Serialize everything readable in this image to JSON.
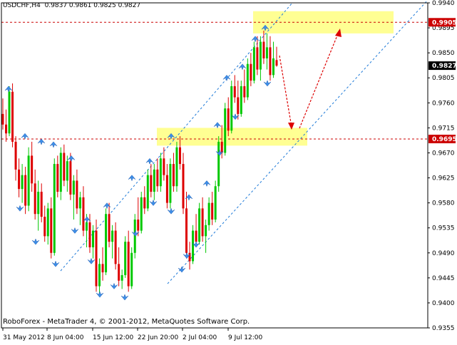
{
  "header": {
    "symbol": "USDCHF,H4",
    "ohlc": "0.9837 0.9861 0.9825 0.9827"
  },
  "copyright": "RoboForex - MetaTrader 4, © 2001-2012, MetaQuotes Software Corp.",
  "chart_data": {
    "type": "candlestick",
    "ylim": [
      0.9355,
      0.994
    ],
    "y_ticks": [
      "0.9940",
      "0.9895",
      "0.9850",
      "0.9805",
      "0.9760",
      "0.9715",
      "0.9670",
      "0.9625",
      "0.9580",
      "0.9535",
      "0.9490",
      "0.9445",
      "0.9400",
      "0.9355"
    ],
    "x_ticks": [
      "31 May 2012",
      "8 Jun 04:00",
      "15 Jun 12:00",
      "22 Jun 20:00",
      "2 Jul 04:00",
      "9 Jul 12:00"
    ],
    "levels": [
      {
        "value": 0.9905,
        "label": "0.9905",
        "color": "#cc0000"
      },
      {
        "value": 0.9695,
        "label": "0.9695",
        "color": "#cc0000"
      }
    ],
    "current_price": {
      "value": 0.9827,
      "label": "0.9827"
    },
    "zones": [
      {
        "y_top": 0.9925,
        "y_bottom": 0.9885
      },
      {
        "y_top": 0.9715,
        "y_bottom": 0.9683
      }
    ],
    "colors": {
      "bull_candle": "#00c800",
      "bear_candle": "#dd0000",
      "channel": "#1e7ad8",
      "fractal": "#3d8ee8",
      "zone": "#ffff80",
      "forecast_arrow": "#dd0000",
      "level": "#cc0000"
    },
    "candles": [
      [
        0.974,
        0.9768,
        0.9712,
        0.9721
      ],
      [
        0.9721,
        0.9748,
        0.969,
        0.9705
      ],
      [
        0.9705,
        0.979,
        0.97,
        0.978
      ],
      [
        0.978,
        0.9795,
        0.968,
        0.969
      ],
      [
        0.969,
        0.97,
        0.962,
        0.964
      ],
      [
        0.964,
        0.966,
        0.959,
        0.9605
      ],
      [
        0.9605,
        0.965,
        0.958,
        0.963
      ],
      [
        0.963,
        0.9645,
        0.956,
        0.9575
      ],
      [
        0.9575,
        0.968,
        0.9565,
        0.9665
      ],
      [
        0.9665,
        0.969,
        0.96,
        0.9615
      ],
      [
        0.9615,
        0.964,
        0.955,
        0.956
      ],
      [
        0.956,
        0.962,
        0.953,
        0.96
      ],
      [
        0.96,
        0.9615,
        0.9545,
        0.9555
      ],
      [
        0.9555,
        0.9575,
        0.951,
        0.952
      ],
      [
        0.952,
        0.958,
        0.9505,
        0.957
      ],
      [
        0.957,
        0.959,
        0.948,
        0.949
      ],
      [
        0.949,
        0.966,
        0.9485,
        0.965
      ],
      [
        0.965,
        0.9665,
        0.959,
        0.96
      ],
      [
        0.96,
        0.968,
        0.9585,
        0.967
      ],
      [
        0.967,
        0.9685,
        0.961,
        0.962
      ],
      [
        0.962,
        0.9665,
        0.96,
        0.9655
      ],
      [
        0.9655,
        0.967,
        0.9585,
        0.9595
      ],
      [
        0.9595,
        0.963,
        0.955,
        0.962
      ],
      [
        0.962,
        0.964,
        0.956,
        0.957
      ],
      [
        0.957,
        0.96,
        0.954,
        0.959
      ],
      [
        0.959,
        0.961,
        0.952,
        0.953
      ],
      [
        0.953,
        0.956,
        0.95,
        0.9545
      ],
      [
        0.9545,
        0.956,
        0.949,
        0.95
      ],
      [
        0.95,
        0.954,
        0.948,
        0.953
      ],
      [
        0.953,
        0.955,
        0.942,
        0.943
      ],
      [
        0.943,
        0.948,
        0.9415,
        0.947
      ],
      [
        0.947,
        0.95,
        0.944,
        0.9455
      ],
      [
        0.9455,
        0.957,
        0.945,
        0.956
      ],
      [
        0.956,
        0.958,
        0.95,
        0.951
      ],
      [
        0.951,
        0.954,
        0.948,
        0.953
      ],
      [
        0.953,
        0.9545,
        0.946,
        0.947
      ],
      [
        0.947,
        0.95,
        0.943,
        0.944
      ],
      [
        0.944,
        0.946,
        0.9425,
        0.945
      ],
      [
        0.945,
        0.952,
        0.9445,
        0.951
      ],
      [
        0.951,
        0.953,
        0.942,
        0.943
      ],
      [
        0.943,
        0.95,
        0.9425,
        0.949
      ],
      [
        0.949,
        0.956,
        0.948,
        0.955
      ],
      [
        0.955,
        0.959,
        0.952,
        0.953
      ],
      [
        0.953,
        0.96,
        0.9525,
        0.959
      ],
      [
        0.959,
        0.961,
        0.956,
        0.957
      ],
      [
        0.957,
        0.964,
        0.9565,
        0.963
      ],
      [
        0.963,
        0.965,
        0.959,
        0.96
      ],
      [
        0.96,
        0.965,
        0.9585,
        0.964
      ],
      [
        0.964,
        0.966,
        0.96,
        0.961
      ],
      [
        0.961,
        0.967,
        0.96,
        0.966
      ],
      [
        0.966,
        0.968,
        0.962,
        0.963
      ],
      [
        0.963,
        0.965,
        0.957,
        0.958
      ],
      [
        0.958,
        0.966,
        0.957,
        0.965
      ],
      [
        0.965,
        0.967,
        0.96,
        0.961
      ],
      [
        0.961,
        0.969,
        0.96,
        0.968
      ],
      [
        0.968,
        0.97,
        0.964,
        0.965
      ],
      [
        0.965,
        0.967,
        0.956,
        0.957
      ],
      [
        0.957,
        0.96,
        0.948,
        0.949
      ],
      [
        0.949,
        0.951,
        0.946,
        0.9475
      ],
      [
        0.9475,
        0.954,
        0.947,
        0.953
      ],
      [
        0.953,
        0.956,
        0.95,
        0.951
      ],
      [
        0.951,
        0.958,
        0.9505,
        0.957
      ],
      [
        0.957,
        0.959,
        0.951,
        0.952
      ],
      [
        0.952,
        0.955,
        0.949,
        0.954
      ],
      [
        0.954,
        0.959,
        0.953,
        0.958
      ],
      [
        0.958,
        0.96,
        0.954,
        0.955
      ],
      [
        0.955,
        0.962,
        0.9545,
        0.961
      ],
      [
        0.961,
        0.97,
        0.96,
        0.969
      ],
      [
        0.969,
        0.972,
        0.966,
        0.967
      ],
      [
        0.967,
        0.976,
        0.9665,
        0.975
      ],
      [
        0.975,
        0.977,
        0.97,
        0.971
      ],
      [
        0.971,
        0.98,
        0.9705,
        0.979
      ],
      [
        0.979,
        0.981,
        0.976,
        0.977
      ],
      [
        0.977,
        0.98,
        0.973,
        0.974
      ],
      [
        0.974,
        0.98,
        0.9735,
        0.979
      ],
      [
        0.979,
        0.982,
        0.976,
        0.977
      ],
      [
        0.977,
        0.984,
        0.9765,
        0.983
      ],
      [
        0.983,
        0.985,
        0.979,
        0.98
      ],
      [
        0.98,
        0.987,
        0.9795,
        0.986
      ],
      [
        0.986,
        0.988,
        0.981,
        0.982
      ],
      [
        0.982,
        0.988,
        0.98,
        0.987
      ],
      [
        0.987,
        0.989,
        0.983,
        0.984
      ],
      [
        0.984,
        0.9885,
        0.982,
        0.986
      ],
      [
        0.986,
        0.988,
        0.98,
        0.981
      ],
      [
        0.981,
        0.987,
        0.9805,
        0.984
      ],
      [
        0.9837,
        0.9861,
        0.9825,
        0.9827
      ]
    ]
  }
}
